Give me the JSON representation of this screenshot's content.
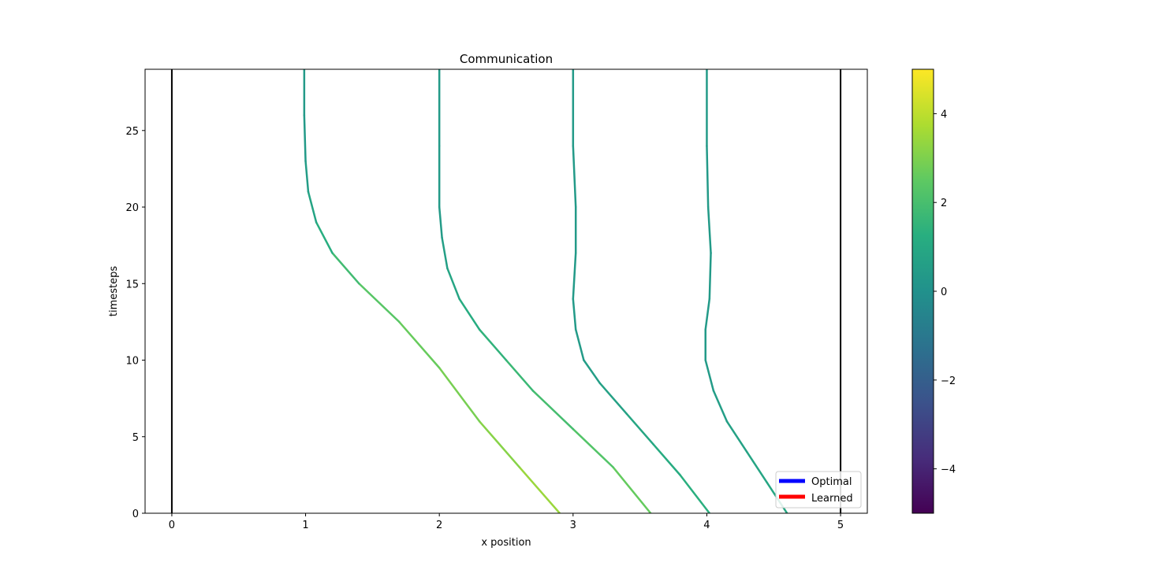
{
  "chart_data": {
    "type": "line",
    "title": "Communication",
    "xlabel": "x position",
    "ylabel": "timesteps",
    "xlim": [
      -0.2,
      5.2
    ],
    "ylim": [
      0,
      29
    ],
    "xticks": [
      0,
      1,
      2,
      3,
      4,
      5
    ],
    "yticks": [
      0,
      5,
      10,
      15,
      20,
      25
    ],
    "grid": false,
    "legend": {
      "placement": "lower right",
      "entries": [
        {
          "label": "Optimal",
          "color": "#0000ff"
        },
        {
          "label": "Learned",
          "color": "#ff0000"
        }
      ]
    },
    "walls": [
      {
        "x": 0,
        "color": "#000000"
      },
      {
        "x": 5,
        "color": "#000000"
      }
    ],
    "colorbar": {
      "colormap": "viridis",
      "range": [
        -5,
        5
      ],
      "ticks": [
        -4,
        -2,
        0,
        2,
        4
      ]
    },
    "series": [
      {
        "points": [
          [
            2.9,
            0,
            3.6
          ],
          [
            2.6,
            3,
            3.3
          ],
          [
            2.3,
            6,
            3.0
          ],
          [
            2.0,
            9.5,
            2.8
          ],
          [
            1.7,
            12.5,
            2.5
          ],
          [
            1.4,
            15,
            2.2
          ],
          [
            1.2,
            17,
            1.5
          ],
          [
            1.08,
            19,
            1.0
          ],
          [
            1.02,
            21,
            0.6
          ],
          [
            1.0,
            23,
            0.4
          ],
          [
            0.99,
            26,
            0.4
          ],
          [
            0.99,
            29,
            0.4
          ]
        ]
      },
      {
        "points": [
          [
            3.58,
            0,
            2.8
          ],
          [
            3.3,
            3,
            2.4
          ],
          [
            3.0,
            5.5,
            2.1
          ],
          [
            2.7,
            8,
            1.8
          ],
          [
            2.5,
            10,
            1.6
          ],
          [
            2.3,
            12,
            1.3
          ],
          [
            2.15,
            14,
            1.0
          ],
          [
            2.06,
            16,
            0.7
          ],
          [
            2.02,
            18,
            0.5
          ],
          [
            2.0,
            20,
            0.4
          ],
          [
            2.0,
            24,
            0.4
          ],
          [
            2.0,
            29,
            0.4
          ]
        ]
      },
      {
        "points": [
          [
            4.02,
            0,
            1.4
          ],
          [
            3.8,
            2.5,
            1.2
          ],
          [
            3.6,
            4.5,
            1.0
          ],
          [
            3.4,
            6.5,
            0.8
          ],
          [
            3.2,
            8.5,
            0.6
          ],
          [
            3.08,
            10,
            0.5
          ],
          [
            3.02,
            12,
            0.4
          ],
          [
            3.0,
            14,
            0.4
          ],
          [
            3.02,
            17,
            0.4
          ],
          [
            3.02,
            20,
            0.4
          ],
          [
            3.0,
            24,
            0.4
          ],
          [
            3.0,
            29,
            0.4
          ]
        ]
      },
      {
        "points": [
          [
            4.6,
            0,
            1.0
          ],
          [
            4.45,
            2,
            0.9
          ],
          [
            4.3,
            4,
            0.8
          ],
          [
            4.15,
            6,
            0.6
          ],
          [
            4.05,
            8,
            0.5
          ],
          [
            3.99,
            10,
            0.4
          ],
          [
            3.99,
            12,
            0.4
          ],
          [
            4.02,
            14,
            0.4
          ],
          [
            4.03,
            17,
            0.4
          ],
          [
            4.01,
            20,
            0.4
          ],
          [
            4.0,
            24,
            0.4
          ],
          [
            4.0,
            29,
            0.4
          ]
        ]
      }
    ]
  }
}
